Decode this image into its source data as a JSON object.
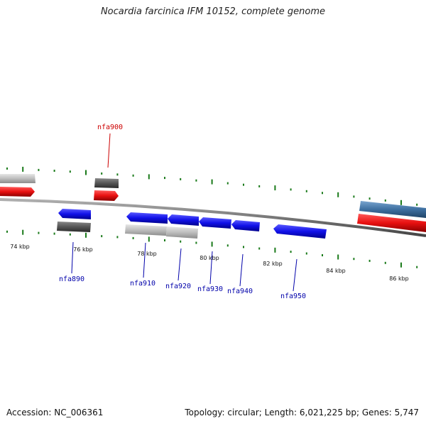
{
  "header": {
    "title": "Nocardia farcinica IFM 10152, complete genome"
  },
  "footer": {
    "accession": "Accession: NC_006361",
    "summary": "Topology: circular; Length: 6,021,225 bp; Genes: 5,747"
  },
  "colors": {
    "backbone": "#7a7a7a",
    "forward_gene": "#1010e8",
    "reverse_gene": "#e81010",
    "other_feature_dark": "#555555",
    "other_feature_light": "#b8b8b8",
    "steel_feature": "#3e6fa0",
    "tick": "#1a7a1a",
    "label_blue": "#0000aa",
    "label_red": "#cc0000"
  },
  "scale_labels": [
    "74 kbp",
    "76 kbp",
    "78 kbp",
    "80 kbp",
    "82 kbp",
    "84 kbp",
    "86 kbp"
  ],
  "gene_labels": [
    {
      "text": "nfa900",
      "color": "red"
    },
    {
      "text": "nfa890",
      "color": "blue"
    },
    {
      "text": "nfa910",
      "color": "blue"
    },
    {
      "text": "nfa920",
      "color": "blue"
    },
    {
      "text": "nfa930",
      "color": "blue"
    },
    {
      "text": "nfa940",
      "color": "blue"
    },
    {
      "text": "nfa950",
      "color": "blue"
    }
  ]
}
